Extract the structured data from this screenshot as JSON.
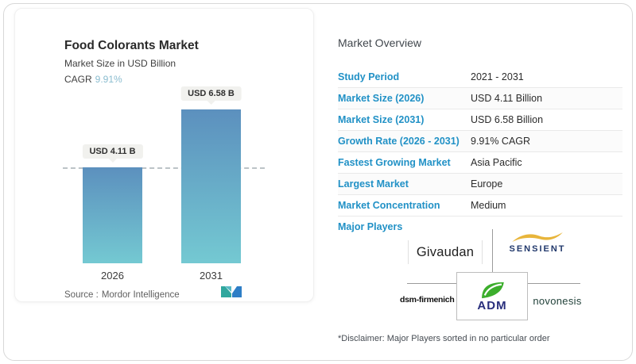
{
  "left_card": {
    "title": "Food Colorants Market",
    "subtitle": "Market Size in USD Billion",
    "cagr_label": "CAGR",
    "cagr_value": "9.91%",
    "source_label": "Source :",
    "source_value": "Mordor Intelligence"
  },
  "chart_data": {
    "type": "bar",
    "title": "Food Colorants Market",
    "ylabel": "Market Size in USD Billion",
    "categories": [
      "2026",
      "2031"
    ],
    "values": [
      4.11,
      6.58
    ],
    "bar_labels": [
      "USD 4.11 B",
      "USD 6.58 B"
    ],
    "unit": "USD Billion",
    "baseline_dashed_at": 4.11,
    "grid": false,
    "bar_gradient_top": "#5c90be",
    "bar_gradient_bottom": "#74c9d2"
  },
  "overview": {
    "heading": "Market Overview",
    "rows": [
      {
        "label": "Study Period",
        "value": "2021 - 2031"
      },
      {
        "label": "Market Size (2026)",
        "value": "USD 4.11 Billion"
      },
      {
        "label": "Market Size (2031)",
        "value": "USD 6.58 Billion"
      },
      {
        "label": "Growth Rate (2026 - 2031)",
        "value": "9.91% CAGR"
      },
      {
        "label": "Fastest Growing Market",
        "value": "Asia Pacific"
      },
      {
        "label": "Largest Market",
        "value": "Europe"
      },
      {
        "label": "Market Concentration",
        "value": "Medium"
      }
    ],
    "major_players_label": "Major Players",
    "major_players": {
      "givaudan": "Givaudan",
      "sensient": "SENSIENT",
      "dsm_firmenich": "dsm-firmenich",
      "adm": "ADM",
      "novonesis": "novonesis"
    },
    "disclaimer": "*Disclaimer: Major Players sorted in no particular order"
  },
  "colors": {
    "label_blue": "#2191c6",
    "cagr_accent": "#8abccf",
    "bar_top": "#5c90be",
    "bar_bottom": "#74c9d2",
    "sensient_navy": "#21386b",
    "sensient_gold": "#e8b53b",
    "adm_green": "#3cae2c",
    "adm_navy": "#282e7c"
  }
}
